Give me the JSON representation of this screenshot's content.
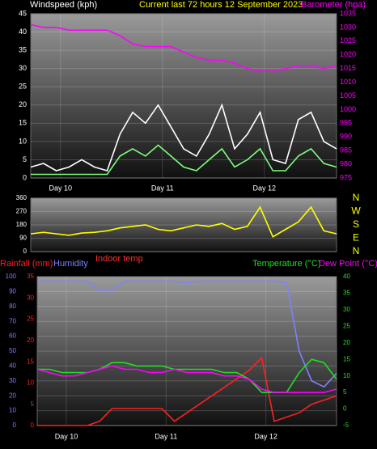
{
  "chart_data": [
    {
      "type": "line",
      "title": "Current last 72 hours 12 September 2023",
      "y_label": "Windspeed (kph)",
      "y2_label": "Barometer (hpa)",
      "x": [
        0,
        3,
        6,
        9,
        12,
        15,
        18,
        21,
        24,
        27,
        30,
        33,
        36,
        39,
        42,
        45,
        48,
        51,
        54,
        57,
        60,
        63,
        66,
        69,
        72
      ],
      "xlim": [
        0,
        72
      ],
      "xticks": [
        {
          "value": 7,
          "label": "Day 10"
        },
        {
          "value": 31,
          "label": "Day 11"
        },
        {
          "value": 55,
          "label": "Day 12"
        }
      ],
      "ylim": [
        0,
        45
      ],
      "yticks": [
        0,
        5,
        10,
        15,
        20,
        25,
        30,
        35,
        40,
        45
      ],
      "y2lim": [
        975,
        1035
      ],
      "y2ticks": [
        975,
        980,
        985,
        990,
        995,
        1000,
        1005,
        1010,
        1015,
        1020,
        1025,
        1030,
        1035
      ],
      "grid": true,
      "series": [
        {
          "color": "#ffffff",
          "values": [
            3,
            4,
            2,
            3,
            5,
            3,
            2,
            12,
            18,
            15,
            20,
            14,
            8,
            6,
            12,
            20,
            8,
            12,
            18,
            5,
            4,
            16,
            18,
            10,
            8
          ]
        },
        {
          "color": "#7dff7d",
          "values": [
            1,
            1,
            1,
            1,
            1,
            1,
            1,
            6,
            8,
            6,
            9,
            6,
            3,
            2,
            5,
            8,
            3,
            5,
            8,
            2,
            2,
            6,
            8,
            4,
            3
          ]
        },
        {
          "color": "#ff00ff",
          "axis": "y2",
          "values": [
            1031,
            1030,
            1030,
            1029,
            1029,
            1029,
            1029,
            1027,
            1024,
            1023,
            1023,
            1023,
            1021,
            1019,
            1018,
            1018,
            1017,
            1015,
            1014,
            1014,
            1015,
            1016,
            1016,
            1015,
            1016
          ]
        }
      ]
    },
    {
      "type": "line",
      "x": [
        0,
        3,
        6,
        9,
        12,
        15,
        18,
        21,
        24,
        27,
        30,
        33,
        36,
        39,
        42,
        45,
        48,
        51,
        54,
        57,
        60,
        63,
        66,
        69,
        72
      ],
      "xlim": [
        0,
        72
      ],
      "ylim": [
        0,
        360
      ],
      "yticks": [
        0,
        90,
        180,
        270,
        360
      ],
      "y2lim": [
        0,
        360
      ],
      "y2ticks": [
        {
          "value": 360,
          "label": "N"
        },
        {
          "value": 270,
          "label": "W"
        },
        {
          "value": 180,
          "label": "S"
        },
        {
          "value": 90,
          "label": "E"
        },
        {
          "value": 0,
          "label": "N"
        }
      ],
      "grid": true,
      "series": [
        {
          "color": "#ffff00",
          "values": [
            120,
            130,
            120,
            110,
            125,
            130,
            140,
            160,
            170,
            180,
            150,
            140,
            160,
            180,
            170,
            190,
            150,
            170,
            300,
            100,
            150,
            200,
            300,
            140,
            120
          ]
        }
      ]
    },
    {
      "type": "line",
      "annotation": "Indoor temp",
      "x": [
        0,
        3,
        6,
        9,
        12,
        15,
        18,
        21,
        24,
        27,
        30,
        33,
        36,
        39,
        42,
        45,
        48,
        51,
        54,
        57,
        60,
        63,
        66,
        69,
        72
      ],
      "xlim": [
        0,
        72
      ],
      "xticks": [
        {
          "value": 7,
          "label": "Day 10"
        },
        {
          "value": 31,
          "label": "Day 11"
        },
        {
          "value": 55,
          "label": "Day 12"
        }
      ],
      "ylim": [
        0,
        100
      ],
      "yticks": [
        0,
        10,
        20,
        30,
        40,
        50,
        60,
        70,
        80,
        90,
        100
      ],
      "y3lim": [
        0,
        35
      ],
      "y3ticks": [
        0,
        5,
        10,
        15,
        20,
        25,
        30,
        35
      ],
      "y2lim": [
        -5,
        40
      ],
      "y2ticks": [
        -5,
        0,
        5,
        10,
        15,
        20,
        25,
        30,
        35,
        40
      ],
      "grid": true,
      "series": [
        {
          "name": "Rainfall (mm)",
          "color": "#ff2020",
          "axis": "y3",
          "values": [
            0,
            0,
            0,
            0,
            0,
            1,
            4,
            4,
            4,
            4,
            4,
            1,
            3,
            5,
            7,
            9,
            11,
            13,
            16,
            1,
            2,
            3,
            5,
            6,
            7
          ]
        },
        {
          "name": "Humidity",
          "color": "#8080ff",
          "values": [
            97,
            97,
            97,
            97,
            97,
            91,
            91,
            97,
            97,
            97,
            97,
            97,
            96,
            97,
            97,
            97,
            97,
            97,
            97,
            97,
            96,
            50,
            30,
            26,
            35
          ]
        },
        {
          "name": "Temperature (°C)",
          "color": "#20e020",
          "axis": "y2",
          "values": [
            12,
            12,
            11,
            11,
            11,
            12,
            14,
            14,
            13,
            13,
            13,
            12,
            12,
            12,
            12,
            11,
            11,
            9,
            5,
            5,
            5,
            11,
            15,
            14,
            9
          ]
        },
        {
          "name": "Dew Point (°C)",
          "color": "#ff00ff",
          "axis": "y2",
          "values": [
            12,
            11,
            10,
            10,
            11,
            12,
            13,
            12,
            12,
            11,
            11,
            12,
            11,
            11,
            11,
            10,
            10,
            9,
            6,
            5,
            5,
            5,
            5,
            5,
            6
          ]
        }
      ]
    }
  ]
}
